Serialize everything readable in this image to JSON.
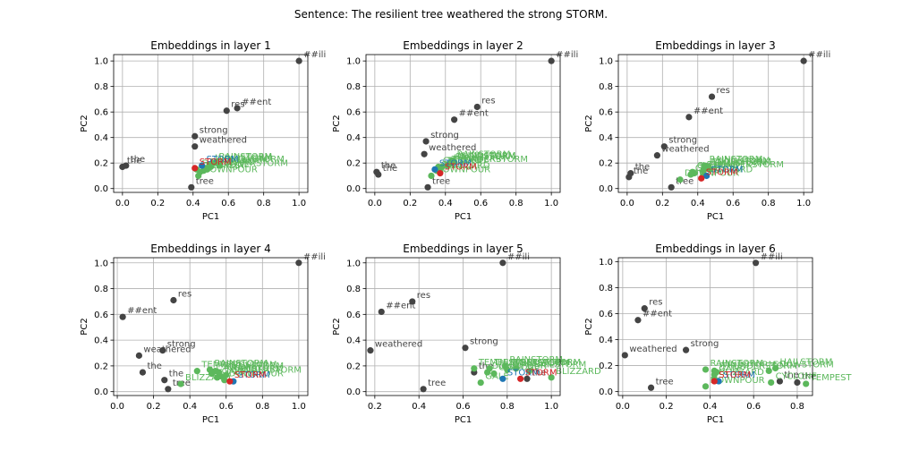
{
  "suptitle": "Sentence: The resilient tree weathered the strong STORM.",
  "chart_data": [
    {
      "type": "scatter",
      "title": "Embeddings in layer 1",
      "xlabel": "PC1",
      "ylabel": "PC2",
      "xlim": [
        -0.05,
        1.05
      ],
      "ylim": [
        -0.03,
        1.05
      ],
      "grid": true,
      "xticks": [
        "0.0",
        "0.2",
        "0.4",
        "0.6",
        "0.8",
        "1.0"
      ],
      "yticks": [
        "0.0",
        "0.2",
        "0.4",
        "0.6",
        "0.8",
        "1.0"
      ],
      "points": [
        {
          "label": "##ili",
          "x": 1.0,
          "y": 1.0,
          "color": "#444444"
        },
        {
          "label": "##ent",
          "x": 0.65,
          "y": 0.63,
          "color": "#444444"
        },
        {
          "label": "res",
          "x": 0.59,
          "y": 0.61,
          "color": "#444444"
        },
        {
          "label": "strong",
          "x": 0.41,
          "y": 0.41,
          "color": "#444444"
        },
        {
          "label": "weathered",
          "x": 0.41,
          "y": 0.33,
          "color": "#444444"
        },
        {
          "label": "the",
          "x": 0.02,
          "y": 0.18,
          "color": "#444444"
        },
        {
          "label": "the",
          "x": 0.0,
          "y": 0.17,
          "color": "#444444"
        },
        {
          "label": "tree",
          "x": 0.39,
          "y": 0.01,
          "color": "#444444"
        },
        {
          "label": "WINDSTORM",
          "x": 0.5,
          "y": 0.19,
          "color": "#5cb85c"
        },
        {
          "label": "RAINSTORM",
          "x": 0.52,
          "y": 0.2,
          "color": "#5cb85c"
        },
        {
          "label": "SNOWSTORM",
          "x": 0.55,
          "y": 0.18,
          "color": "#5cb85c"
        },
        {
          "label": "HAILSTORM",
          "x": 0.5,
          "y": 0.17,
          "color": "#5cb85c"
        },
        {
          "label": "BLIZZARD",
          "x": 0.47,
          "y": 0.16,
          "color": "#5cb85c"
        },
        {
          "label": "THUNDERSTORM",
          "x": 0.48,
          "y": 0.15,
          "color": "#5cb85c"
        },
        {
          "label": "TEMPEST",
          "x": 0.44,
          "y": 0.13,
          "color": "#5cb85c"
        },
        {
          "label": "CYCLONE",
          "x": 0.46,
          "y": 0.14,
          "color": "#5cb85c"
        },
        {
          "label": "GALE",
          "x": 0.42,
          "y": 0.15,
          "color": "#5cb85c"
        },
        {
          "label": "DOWNPOUR",
          "x": 0.43,
          "y": 0.1,
          "color": "#5cb85c"
        },
        {
          "label": "STORM",
          "x": 0.45,
          "y": 0.18,
          "color": "#1f77b4"
        },
        {
          "label": "STORM",
          "x": 0.41,
          "y": 0.16,
          "color": "#d62728"
        }
      ]
    },
    {
      "type": "scatter",
      "title": "Embeddings in layer 2",
      "xlabel": "PC1",
      "ylabel": "PC2",
      "xlim": [
        -0.05,
        1.05
      ],
      "ylim": [
        -0.03,
        1.05
      ],
      "grid": true,
      "xticks": [
        "0.0",
        "0.2",
        "0.4",
        "0.6",
        "0.8",
        "1.0"
      ],
      "yticks": [
        "0.0",
        "0.2",
        "0.4",
        "0.6",
        "0.8",
        "1.0"
      ],
      "points": [
        {
          "label": "##ili",
          "x": 1.0,
          "y": 1.0,
          "color": "#444444"
        },
        {
          "label": "res",
          "x": 0.58,
          "y": 0.64,
          "color": "#444444"
        },
        {
          "label": "##ent",
          "x": 0.45,
          "y": 0.54,
          "color": "#444444"
        },
        {
          "label": "strong",
          "x": 0.29,
          "y": 0.37,
          "color": "#444444"
        },
        {
          "label": "weathered",
          "x": 0.28,
          "y": 0.27,
          "color": "#444444"
        },
        {
          "label": "the",
          "x": 0.01,
          "y": 0.13,
          "color": "#444444"
        },
        {
          "label": "the",
          "x": 0.02,
          "y": 0.11,
          "color": "#444444"
        },
        {
          "label": "tree",
          "x": 0.3,
          "y": 0.01,
          "color": "#444444"
        },
        {
          "label": "RAINSTORM",
          "x": 0.44,
          "y": 0.22,
          "color": "#5cb85c"
        },
        {
          "label": "WINDSTORM",
          "x": 0.45,
          "y": 0.21,
          "color": "#5cb85c"
        },
        {
          "label": "SNOWSTORM",
          "x": 0.43,
          "y": 0.2,
          "color": "#5cb85c"
        },
        {
          "label": "HAILSTORM",
          "x": 0.42,
          "y": 0.19,
          "color": "#5cb85c"
        },
        {
          "label": "THUNDERSTORM",
          "x": 0.41,
          "y": 0.18,
          "color": "#5cb85c"
        },
        {
          "label": "TEMPEST",
          "x": 0.38,
          "y": 0.17,
          "color": "#5cb85c"
        },
        {
          "label": "CYCLONE",
          "x": 0.36,
          "y": 0.17,
          "color": "#5cb85c"
        },
        {
          "label": "GALE",
          "x": 0.35,
          "y": 0.14,
          "color": "#5cb85c"
        },
        {
          "label": "BLIZZARD",
          "x": 0.37,
          "y": 0.13,
          "color": "#5cb85c"
        },
        {
          "label": "DOWNPOUR",
          "x": 0.32,
          "y": 0.1,
          "color": "#5cb85c"
        },
        {
          "label": "STORM",
          "x": 0.34,
          "y": 0.15,
          "color": "#1f77b4"
        },
        {
          "label": "STORM",
          "x": 0.37,
          "y": 0.12,
          "color": "#d62728"
        }
      ]
    },
    {
      "type": "scatter",
      "title": "Embeddings in layer 3",
      "xlabel": "PC1",
      "ylabel": "PC2",
      "xlim": [
        -0.05,
        1.05
      ],
      "ylim": [
        -0.03,
        1.05
      ],
      "grid": true,
      "xticks": [
        "0.0",
        "0.2",
        "0.4",
        "0.6",
        "0.8",
        "1.0"
      ],
      "yticks": [
        "0.0",
        "0.2",
        "0.4",
        "0.6",
        "0.8",
        "1.0"
      ],
      "points": [
        {
          "label": "##ili",
          "x": 1.0,
          "y": 1.0,
          "color": "#444444"
        },
        {
          "label": "res",
          "x": 0.48,
          "y": 0.72,
          "color": "#444444"
        },
        {
          "label": "##ent",
          "x": 0.35,
          "y": 0.56,
          "color": "#444444"
        },
        {
          "label": "strong",
          "x": 0.21,
          "y": 0.33,
          "color": "#444444"
        },
        {
          "label": "weathered",
          "x": 0.17,
          "y": 0.26,
          "color": "#444444"
        },
        {
          "label": "the",
          "x": 0.02,
          "y": 0.12,
          "color": "#444444"
        },
        {
          "label": "the",
          "x": 0.01,
          "y": 0.09,
          "color": "#444444"
        },
        {
          "label": "tree",
          "x": 0.25,
          "y": 0.01,
          "color": "#444444"
        },
        {
          "label": "RAINSTORM",
          "x": 0.44,
          "y": 0.18,
          "color": "#5cb85c"
        },
        {
          "label": "WINDSTORM",
          "x": 0.46,
          "y": 0.17,
          "color": "#5cb85c"
        },
        {
          "label": "SNOWSTORM",
          "x": 0.45,
          "y": 0.16,
          "color": "#5cb85c"
        },
        {
          "label": "HAILSTORM",
          "x": 0.47,
          "y": 0.15,
          "color": "#5cb85c"
        },
        {
          "label": "THUNDERSTORM",
          "x": 0.43,
          "y": 0.14,
          "color": "#5cb85c"
        },
        {
          "label": "TEMPEST",
          "x": 0.38,
          "y": 0.12,
          "color": "#5cb85c"
        },
        {
          "label": "CYCLONE",
          "x": 0.37,
          "y": 0.13,
          "color": "#5cb85c"
        },
        {
          "label": "GALE",
          "x": 0.36,
          "y": 0.11,
          "color": "#5cb85c"
        },
        {
          "label": "BLIZZARD",
          "x": 0.43,
          "y": 0.1,
          "color": "#5cb85c"
        },
        {
          "label": "DOWNPOUR",
          "x": 0.3,
          "y": 0.07,
          "color": "#5cb85c"
        },
        {
          "label": "STORM",
          "x": 0.45,
          "y": 0.1,
          "color": "#1f77b4"
        },
        {
          "label": "STORM",
          "x": 0.42,
          "y": 0.08,
          "color": "#d62728"
        }
      ]
    },
    {
      "type": "scatter",
      "title": "Embeddings in layer 4",
      "xlabel": "PC1",
      "ylabel": "PC2",
      "xlim": [
        -0.02,
        1.05
      ],
      "ylim": [
        -0.03,
        1.04
      ],
      "grid": true,
      "xticks": [
        "0.0",
        "0.2",
        "0.4",
        "0.6",
        "0.8",
        "1.0"
      ],
      "yticks": [
        "0.0",
        "0.2",
        "0.4",
        "0.6",
        "0.8",
        "1.0"
      ],
      "points": [
        {
          "label": "##ili",
          "x": 1.0,
          "y": 1.0,
          "color": "#444444"
        },
        {
          "label": "res",
          "x": 0.31,
          "y": 0.71,
          "color": "#444444"
        },
        {
          "label": "##ent",
          "x": 0.03,
          "y": 0.58,
          "color": "#444444"
        },
        {
          "label": "strong",
          "x": 0.25,
          "y": 0.32,
          "color": "#444444"
        },
        {
          "label": "weathered",
          "x": 0.12,
          "y": 0.28,
          "color": "#444444"
        },
        {
          "label": "the",
          "x": 0.14,
          "y": 0.15,
          "color": "#444444"
        },
        {
          "label": "the",
          "x": 0.26,
          "y": 0.09,
          "color": "#444444"
        },
        {
          "label": "tree",
          "x": 0.28,
          "y": 0.02,
          "color": "#444444"
        },
        {
          "label": "RAINSTORM",
          "x": 0.51,
          "y": 0.17,
          "color": "#5cb85c"
        },
        {
          "label": "WINDSTORM",
          "x": 0.54,
          "y": 0.16,
          "color": "#5cb85c"
        },
        {
          "label": "SNOWSTORM",
          "x": 0.56,
          "y": 0.15,
          "color": "#5cb85c"
        },
        {
          "label": "HAILSTORM",
          "x": 0.6,
          "y": 0.13,
          "color": "#5cb85c"
        },
        {
          "label": "THUNDERSTORM",
          "x": 0.57,
          "y": 0.12,
          "color": "#5cb85c"
        },
        {
          "label": "TEMPEST",
          "x": 0.44,
          "y": 0.16,
          "color": "#5cb85c"
        },
        {
          "label": "CYCLONE",
          "x": 0.52,
          "y": 0.14,
          "color": "#5cb85c"
        },
        {
          "label": "GALE",
          "x": 0.55,
          "y": 0.11,
          "color": "#5cb85c"
        },
        {
          "label": "BLIZZARD",
          "x": 0.35,
          "y": 0.06,
          "color": "#5cb85c"
        },
        {
          "label": "DOWNPOUR",
          "x": 0.59,
          "y": 0.09,
          "color": "#5cb85c"
        },
        {
          "label": "STORM",
          "x": 0.64,
          "y": 0.08,
          "color": "#1f77b4"
        },
        {
          "label": "STORM",
          "x": 0.62,
          "y": 0.08,
          "color": "#d62728"
        }
      ]
    },
    {
      "type": "scatter",
      "title": "Embeddings in layer 5",
      "xlabel": "PC1",
      "ylabel": "PC2",
      "xlim": [
        0.16,
        1.04
      ],
      "ylim": [
        -0.03,
        1.04
      ],
      "grid": true,
      "xticks": [
        "0.2",
        "0.4",
        "0.6",
        "0.8",
        "1.0"
      ],
      "yticks": [
        "0.0",
        "0.2",
        "0.4",
        "0.6",
        "0.8",
        "1.0"
      ],
      "points": [
        {
          "label": "##ili",
          "x": 0.78,
          "y": 1.0,
          "color": "#444444"
        },
        {
          "label": "res",
          "x": 0.37,
          "y": 0.7,
          "color": "#444444"
        },
        {
          "label": "##ent",
          "x": 0.23,
          "y": 0.62,
          "color": "#444444"
        },
        {
          "label": "strong",
          "x": 0.61,
          "y": 0.34,
          "color": "#444444"
        },
        {
          "label": "weathered",
          "x": 0.18,
          "y": 0.32,
          "color": "#444444"
        },
        {
          "label": "the",
          "x": 0.65,
          "y": 0.15,
          "color": "#444444"
        },
        {
          "label": "the",
          "x": 0.89,
          "y": 0.1,
          "color": "#444444"
        },
        {
          "label": "tree",
          "x": 0.42,
          "y": 0.02,
          "color": "#444444"
        },
        {
          "label": "RAINSTORM",
          "x": 0.79,
          "y": 0.2,
          "color": "#5cb85c"
        },
        {
          "label": "WINDSTORM",
          "x": 0.8,
          "y": 0.17,
          "color": "#5cb85c"
        },
        {
          "label": "SNOWSTORM",
          "x": 0.84,
          "y": 0.18,
          "color": "#5cb85c"
        },
        {
          "label": "HAILSTORM",
          "x": 0.9,
          "y": 0.16,
          "color": "#5cb85c"
        },
        {
          "label": "THUNDERSTORM",
          "x": 0.72,
          "y": 0.18,
          "color": "#5cb85c"
        },
        {
          "label": "TEMPEST",
          "x": 0.65,
          "y": 0.18,
          "color": "#5cb85c"
        },
        {
          "label": "CYCLONE",
          "x": 0.74,
          "y": 0.14,
          "color": "#5cb85c"
        },
        {
          "label": "GALE",
          "x": 0.68,
          "y": 0.07,
          "color": "#5cb85c"
        },
        {
          "label": "BLIZZARD",
          "x": 1.0,
          "y": 0.11,
          "color": "#5cb85c"
        },
        {
          "label": "DOWNPOUR",
          "x": 0.71,
          "y": 0.15,
          "color": "#5cb85c"
        },
        {
          "label": "STORM",
          "x": 0.78,
          "y": 0.1,
          "color": "#1f77b4"
        },
        {
          "label": "STORM",
          "x": 0.86,
          "y": 0.1,
          "color": "#d62728"
        }
      ]
    },
    {
      "type": "scatter",
      "title": "Embeddings in layer 6",
      "xlabel": "PC1",
      "ylabel": "PC2",
      "xlim": [
        -0.02,
        0.87
      ],
      "ylim": [
        -0.03,
        1.03
      ],
      "grid": true,
      "xticks": [
        "0.0",
        "0.2",
        "0.4",
        "0.6",
        "0.8"
      ],
      "yticks": [
        "0.0",
        "0.2",
        "0.4",
        "0.6",
        "0.8",
        "1.0"
      ],
      "points": [
        {
          "label": "##ili",
          "x": 0.61,
          "y": 0.99,
          "color": "#444444"
        },
        {
          "label": "res",
          "x": 0.1,
          "y": 0.64,
          "color": "#444444"
        },
        {
          "label": "##ent",
          "x": 0.07,
          "y": 0.55,
          "color": "#444444"
        },
        {
          "label": "strong",
          "x": 0.29,
          "y": 0.32,
          "color": "#444444"
        },
        {
          "label": "weathered",
          "x": 0.01,
          "y": 0.28,
          "color": "#444444"
        },
        {
          "label": "the",
          "x": 0.72,
          "y": 0.08,
          "color": "#444444"
        },
        {
          "label": "the",
          "x": 0.8,
          "y": 0.07,
          "color": "#444444"
        },
        {
          "label": "tree",
          "x": 0.13,
          "y": 0.03,
          "color": "#444444"
        },
        {
          "label": "RAINSTORM",
          "x": 0.38,
          "y": 0.17,
          "color": "#5cb85c"
        },
        {
          "label": "WINDSTORM",
          "x": 0.42,
          "y": 0.16,
          "color": "#5cb85c"
        },
        {
          "label": "SNOWSTORM",
          "x": 0.67,
          "y": 0.16,
          "color": "#5cb85c"
        },
        {
          "label": "HAILSTORM",
          "x": 0.7,
          "y": 0.18,
          "color": "#5cb85c"
        },
        {
          "label": "THUNDERSTORM",
          "x": 0.43,
          "y": 0.15,
          "color": "#5cb85c"
        },
        {
          "label": "TEMPEST",
          "x": 0.84,
          "y": 0.06,
          "color": "#5cb85c"
        },
        {
          "label": "CYCLONE",
          "x": 0.68,
          "y": 0.07,
          "color": "#5cb85c"
        },
        {
          "label": "GALE",
          "x": 0.42,
          "y": 0.13,
          "color": "#5cb85c"
        },
        {
          "label": "BLIZZARD",
          "x": 0.42,
          "y": 0.1,
          "color": "#5cb85c"
        },
        {
          "label": "DOWNPOUR",
          "x": 0.38,
          "y": 0.04,
          "color": "#5cb85c"
        },
        {
          "label": "STORM",
          "x": 0.44,
          "y": 0.08,
          "color": "#1f77b4"
        },
        {
          "label": "STORM",
          "x": 0.42,
          "y": 0.08,
          "color": "#d62728"
        }
      ]
    }
  ]
}
